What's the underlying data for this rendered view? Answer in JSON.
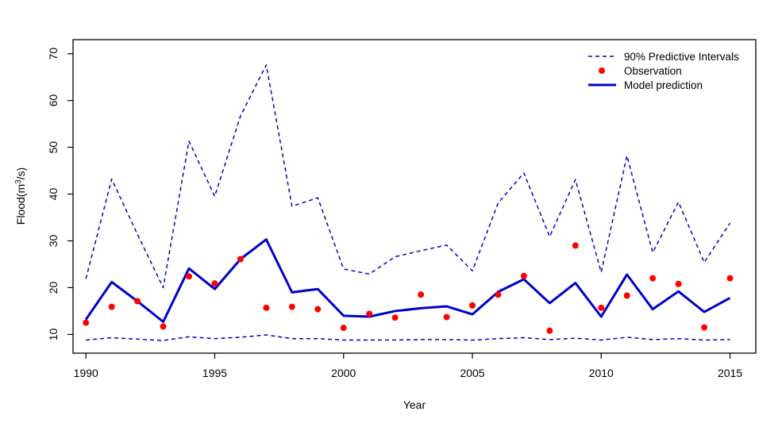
{
  "chart_data": {
    "type": "line",
    "title": "",
    "xlabel": "Year",
    "ylabel_prefix": "Flood(m",
    "ylabel_sup": "3",
    "ylabel_suffix": "/s)",
    "xlim": [
      1989.5,
      2016
    ],
    "ylim": [
      6,
      73
    ],
    "xticks": [
      1990,
      1995,
      2000,
      2005,
      2010,
      2015
    ],
    "yticks": [
      10,
      20,
      30,
      40,
      50,
      60,
      70
    ],
    "x": [
      1990,
      1991,
      1992,
      1993,
      1994,
      1995,
      1996,
      1997,
      1998,
      1999,
      2000,
      2001,
      2002,
      2003,
      2004,
      2005,
      2006,
      2007,
      2008,
      2009,
      2010,
      2011,
      2012,
      2013,
      2014,
      2015
    ],
    "series": [
      {
        "name": "90% Predictive Intervals (upper)",
        "style": "dashed",
        "color": "#0000CD",
        "values": [
          21.9,
          43.2,
          31.4,
          20.0,
          51.3,
          39.5,
          56.7,
          67.6,
          37.4,
          39.2,
          24.0,
          22.9,
          26.6,
          27.9,
          29.1,
          23.6,
          38.1,
          44.5,
          30.9,
          43.1,
          23.3,
          48.2,
          27.5,
          38.3,
          25.4,
          33.8
        ]
      },
      {
        "name": "90% Predictive Intervals (lower)",
        "style": "dashed",
        "color": "#0000CD",
        "values": [
          8.8,
          9.3,
          9.0,
          8.7,
          9.5,
          9.1,
          9.4,
          9.9,
          9.1,
          9.1,
          8.8,
          8.8,
          8.8,
          8.9,
          8.9,
          8.8,
          9.1,
          9.3,
          8.9,
          9.2,
          8.8,
          9.4,
          8.9,
          9.1,
          8.8,
          8.9
        ]
      },
      {
        "name": "Model prediction",
        "style": "solid",
        "color": "#0000CD",
        "values": [
          13.2,
          21.2,
          17.1,
          12.7,
          24.1,
          19.7,
          26.1,
          30.3,
          19.0,
          19.7,
          14.0,
          13.8,
          15.0,
          15.6,
          16.0,
          14.3,
          19.1,
          21.8,
          16.7,
          21.0,
          13.8,
          22.8,
          15.4,
          19.2,
          14.8,
          17.8
        ]
      },
      {
        "name": "Observation",
        "style": "points",
        "color": "#FF0000",
        "values": [
          12.5,
          15.9,
          17.1,
          11.7,
          22.4,
          20.9,
          26.1,
          15.7,
          15.9,
          15.4,
          11.4,
          14.4,
          13.6,
          18.5,
          13.7,
          16.2,
          18.5,
          22.5,
          10.8,
          29.0,
          15.7,
          18.3,
          22.0,
          20.8,
          11.5,
          22.0
        ]
      }
    ],
    "legend": {
      "position": "top-right",
      "entries": [
        {
          "label": "90% Predictive Intervals",
          "kind": "dashed-line"
        },
        {
          "label": "Observation",
          "kind": "point"
        },
        {
          "label": "Model prediction",
          "kind": "solid-line"
        }
      ]
    }
  }
}
